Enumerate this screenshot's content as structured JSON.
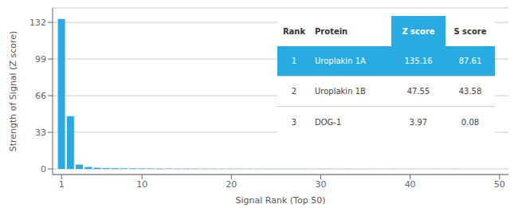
{
  "chart_data": {
    "type": "bar",
    "xlabel": "Signal Rank (Top 50)",
    "ylabel": "Strength of Signal (Z score)",
    "x": [
      1,
      2,
      3,
      4,
      5,
      6,
      7,
      8,
      9,
      10,
      11,
      12,
      13,
      14,
      15,
      16,
      17,
      18,
      19,
      20,
      21,
      22,
      23,
      24,
      25,
      26,
      27,
      28,
      29,
      30,
      31,
      32,
      33,
      34,
      35,
      36,
      37,
      38,
      39,
      40,
      41,
      42,
      43,
      44,
      45,
      46,
      47,
      48,
      49,
      50
    ],
    "values": [
      135.16,
      47.55,
      3.97,
      1.8,
      1.1,
      0.8,
      0.65,
      0.55,
      0.48,
      0.42,
      0.37,
      0.33,
      0.3,
      0.27,
      0.25,
      0.23,
      0.21,
      0.19,
      0.18,
      0.17,
      0.16,
      0.15,
      0.14,
      0.13,
      0.12,
      0.11,
      0.1,
      0.09,
      0.09,
      0.08,
      0.08,
      0.07,
      0.07,
      0.06,
      0.06,
      0.05,
      0.05,
      0.05,
      0.04,
      0.04,
      0.04,
      0.03,
      0.03,
      0.03,
      0.03,
      0.02,
      0.02,
      0.02,
      0.02,
      0.02
    ],
    "color": "#29ABE2",
    "xlim": [
      0,
      51
    ],
    "xticks": [
      1,
      10,
      20,
      30,
      40,
      50
    ],
    "ylim": [
      -5,
      145
    ],
    "yticks": [
      0,
      33,
      66,
      99,
      132
    ],
    "grid": true,
    "table": [
      [
        "Rank",
        "Protein",
        "Z score",
        "S score"
      ],
      [
        "1",
        "Uroplakin 1A",
        "135.16",
        "87.61"
      ],
      [
        "2",
        "Uroplakin 1B",
        "47.55",
        "43.58"
      ],
      [
        "3",
        "DOG-1",
        "3.97",
        "0.08"
      ]
    ]
  }
}
